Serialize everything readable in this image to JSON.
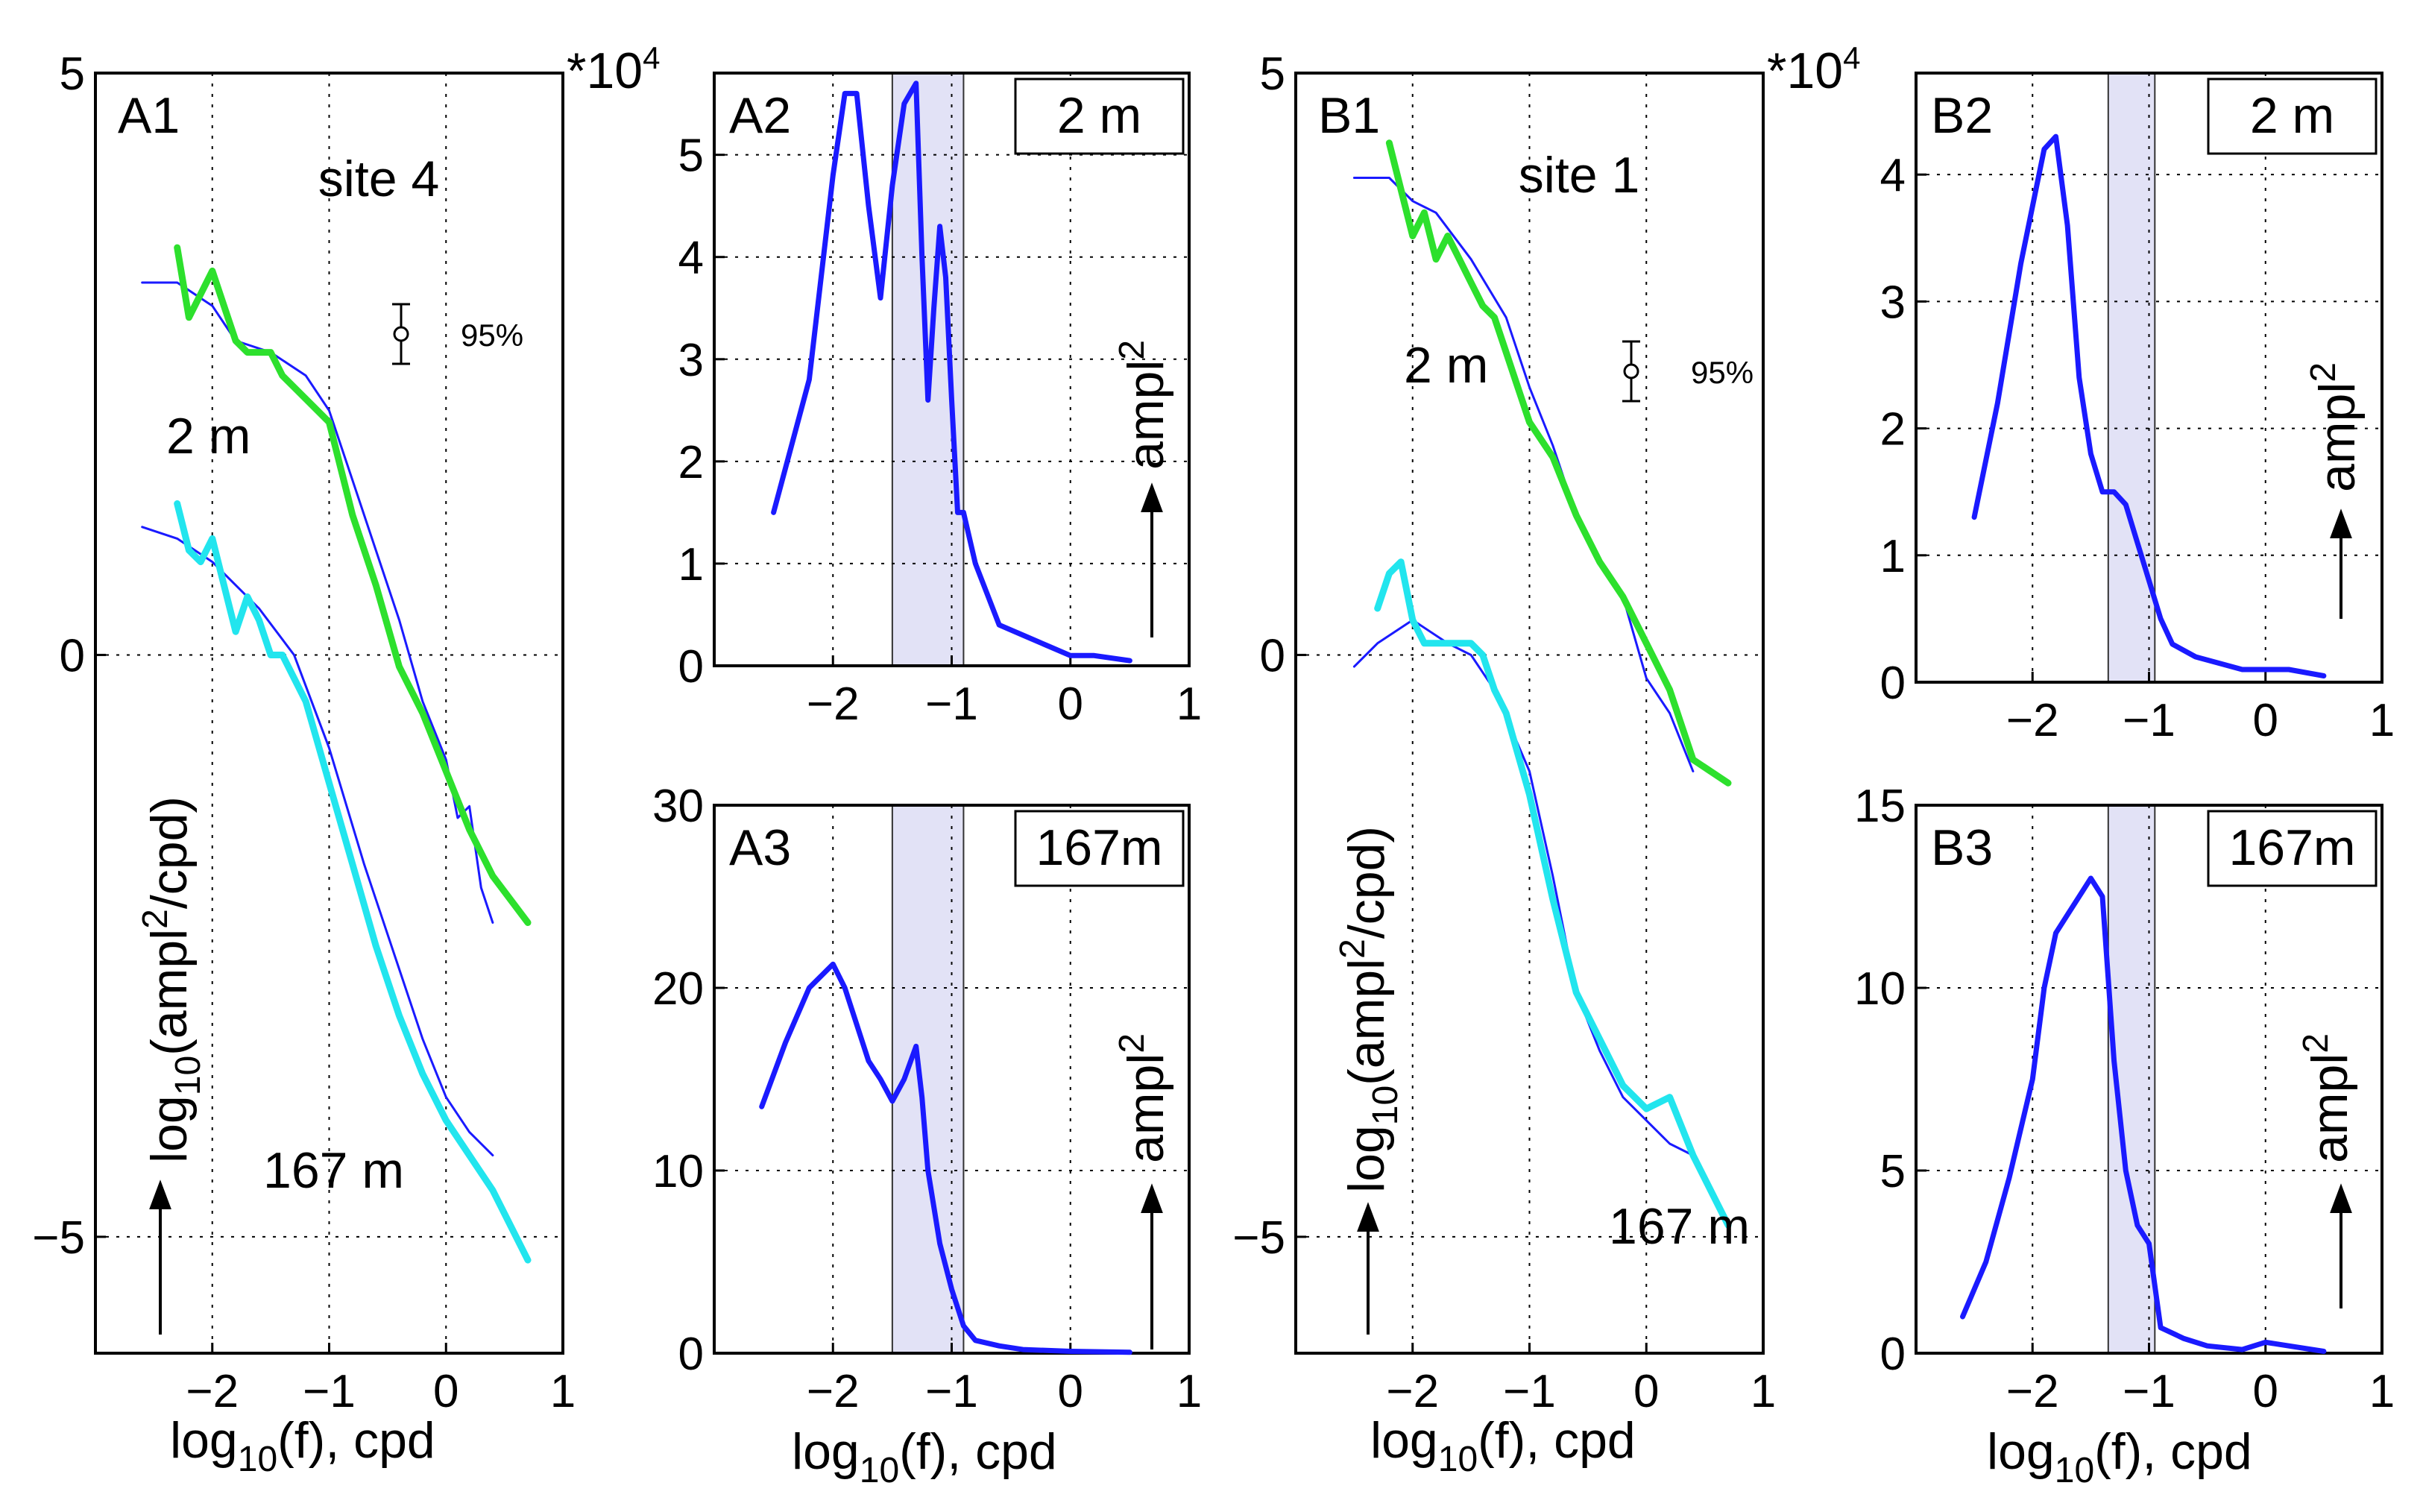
{
  "page": {
    "exponent_label_a": "*10",
    "exponent_label_b": "*10",
    "exponent_power": "4"
  },
  "x_axis_label": {
    "main": "log",
    "sub": "10",
    "rest": "(f), cpd"
  },
  "log_ylabel": {
    "main": "log",
    "sub": "10",
    "open": "(ampl",
    "sup": "2",
    "close": "/cpd)"
  },
  "amp_ylabel": {
    "main": "ampl",
    "sup": "2"
  },
  "confidence": {
    "label": "95%"
  },
  "chart_data": [
    {
      "id": "A1",
      "type": "line",
      "panel_label": "A1",
      "site": "site 4",
      "annotations": [
        "2 m",
        "167 m"
      ],
      "xlim": [
        -3,
        1
      ],
      "ylim": [
        -6,
        5
      ],
      "xticks": [
        -2,
        -1,
        0,
        1
      ],
      "xtick_labels": [
        "−2",
        "−1",
        "0",
        "1"
      ],
      "yticks": [
        -5,
        0,
        5
      ],
      "ytick_labels": [
        "−5",
        "0",
        "5"
      ],
      "series": [
        {
          "color": "#1a1aff",
          "width": 3,
          "x": [
            -2.6,
            -2.3,
            -2.0,
            -1.8,
            -1.5,
            -1.2,
            -1.0,
            -0.8,
            -0.6,
            -0.4,
            -0.2,
            0.0,
            0.1,
            0.2,
            0.3,
            0.4
          ],
          "y": [
            3.2,
            3.2,
            3.0,
            2.7,
            2.6,
            2.4,
            2.1,
            1.5,
            0.9,
            0.3,
            -0.4,
            -0.9,
            -1.4,
            -1.3,
            -2.0,
            -2.3
          ]
        },
        {
          "color": "#2de02d",
          "width": 9,
          "x": [
            -2.3,
            -2.2,
            -2.1,
            -2.0,
            -1.9,
            -1.8,
            -1.7,
            -1.6,
            -1.5,
            -1.4,
            -1.3,
            -1.2,
            -1.0,
            -0.8,
            -0.6,
            -0.4,
            -0.2,
            0.0,
            0.2,
            0.4,
            0.7
          ],
          "y": [
            3.5,
            2.9,
            3.1,
            3.3,
            3.0,
            2.7,
            2.6,
            2.6,
            2.6,
            2.4,
            2.3,
            2.2,
            2.0,
            1.2,
            0.6,
            -0.1,
            -0.5,
            -1.0,
            -1.5,
            -1.9,
            -2.3
          ]
        },
        {
          "color": "#1a1aff",
          "width": 3,
          "x": [
            -2.6,
            -2.3,
            -2.0,
            -1.8,
            -1.6,
            -1.3,
            -1.0,
            -0.7,
            -0.4,
            -0.2,
            0.0,
            0.2,
            0.4
          ],
          "y": [
            1.1,
            1.0,
            0.8,
            0.6,
            0.4,
            0.0,
            -0.8,
            -1.8,
            -2.7,
            -3.3,
            -3.8,
            -4.1,
            -4.3
          ]
        },
        {
          "color": "#22e5ee",
          "width": 9,
          "x": [
            -2.3,
            -2.2,
            -2.1,
            -2.0,
            -1.9,
            -1.8,
            -1.7,
            -1.6,
            -1.5,
            -1.4,
            -1.3,
            -1.2,
            -1.0,
            -0.8,
            -0.6,
            -0.4,
            -0.2,
            0.0,
            0.2,
            0.4,
            0.7
          ],
          "y": [
            1.3,
            0.9,
            0.8,
            1.0,
            0.6,
            0.2,
            0.5,
            0.3,
            0.0,
            0.0,
            -0.2,
            -0.4,
            -1.1,
            -1.8,
            -2.5,
            -3.1,
            -3.6,
            -4.0,
            -4.3,
            -4.6,
            -5.2
          ]
        }
      ]
    },
    {
      "id": "A2",
      "type": "line",
      "panel_label": "A2",
      "depth_box": "2 m",
      "xlim": [
        -3,
        1
      ],
      "ylim": [
        0,
        5.8
      ],
      "xticks": [
        -2,
        -1,
        0,
        1
      ],
      "xtick_labels": [
        "−2",
        "−1",
        "0",
        "1"
      ],
      "yticks": [
        0,
        1,
        2,
        3,
        4,
        5
      ],
      "ytick_labels": [
        "0",
        "1",
        "2",
        "3",
        "4",
        "5"
      ],
      "shaded_band": [
        -1.5,
        -0.9
      ],
      "series": [
        {
          "color": "#1a1aff",
          "width": 7,
          "x": [
            -2.5,
            -2.2,
            -2.0,
            -1.9,
            -1.8,
            -1.7,
            -1.6,
            -1.5,
            -1.4,
            -1.3,
            -1.25,
            -1.2,
            -1.15,
            -1.1,
            -1.05,
            -1.0,
            -0.95,
            -0.9,
            -0.8,
            -0.7,
            -0.6,
            -0.4,
            -0.2,
            0.0,
            0.2,
            0.5
          ],
          "y": [
            1.5,
            2.8,
            4.8,
            5.6,
            5.6,
            4.5,
            3.6,
            4.7,
            5.5,
            5.7,
            4.0,
            2.6,
            3.5,
            4.3,
            3.8,
            2.6,
            1.5,
            1.5,
            1.0,
            0.7,
            0.4,
            0.3,
            0.2,
            0.1,
            0.1,
            0.05
          ]
        }
      ]
    },
    {
      "id": "A3",
      "type": "line",
      "panel_label": "A3",
      "depth_box": "167m",
      "xlim": [
        -3,
        1
      ],
      "ylim": [
        0,
        30
      ],
      "xticks": [
        -2,
        -1,
        0,
        1
      ],
      "xtick_labels": [
        "−2",
        "−1",
        "0",
        "1"
      ],
      "yticks": [
        0,
        10,
        20,
        30
      ],
      "ytick_labels": [
        "0",
        "10",
        "20",
        "30"
      ],
      "shaded_band": [
        -1.5,
        -0.9
      ],
      "series": [
        {
          "color": "#1a1aff",
          "width": 7,
          "x": [
            -2.6,
            -2.4,
            -2.2,
            -2.0,
            -1.9,
            -1.8,
            -1.7,
            -1.6,
            -1.5,
            -1.4,
            -1.3,
            -1.25,
            -1.2,
            -1.1,
            -1.0,
            -0.9,
            -0.8,
            -0.6,
            -0.4,
            0.0,
            0.5
          ],
          "y": [
            13.5,
            17,
            20,
            21.3,
            20,
            18,
            16,
            15,
            13.8,
            15,
            16.8,
            14,
            10,
            6,
            3.5,
            1.5,
            0.7,
            0.4,
            0.2,
            0.1,
            0.05
          ]
        }
      ]
    },
    {
      "id": "B1",
      "type": "line",
      "panel_label": "B1",
      "site": "site 1",
      "annotations": [
        "2 m",
        "167 m"
      ],
      "xlim": [
        -3,
        1
      ],
      "ylim": [
        -6,
        5
      ],
      "xticks": [
        -2,
        -1,
        0,
        1
      ],
      "xtick_labels": [
        "−2",
        "−1",
        "0",
        "1"
      ],
      "yticks": [
        -5,
        0,
        5
      ],
      "ytick_labels": [
        "−5",
        "0",
        "5"
      ],
      "series": [
        {
          "color": "#1a1aff",
          "width": 3,
          "x": [
            -2.5,
            -2.2,
            -2.0,
            -1.8,
            -1.5,
            -1.2,
            -1.0,
            -0.8,
            -0.6,
            -0.4,
            -0.2,
            0.0,
            0.2,
            0.4
          ],
          "y": [
            4.1,
            4.1,
            3.9,
            3.8,
            3.4,
            2.9,
            2.3,
            1.8,
            1.2,
            0.8,
            0.5,
            -0.2,
            -0.5,
            -1.0
          ]
        },
        {
          "color": "#2de02d",
          "width": 9,
          "x": [
            -2.2,
            -2.1,
            -2.0,
            -1.9,
            -1.8,
            -1.7,
            -1.6,
            -1.5,
            -1.4,
            -1.3,
            -1.2,
            -1.0,
            -0.8,
            -0.6,
            -0.4,
            -0.2,
            0.0,
            0.2,
            0.4,
            0.7
          ],
          "y": [
            4.4,
            4.0,
            3.6,
            3.8,
            3.4,
            3.6,
            3.4,
            3.2,
            3.0,
            2.9,
            2.6,
            2.0,
            1.7,
            1.2,
            0.8,
            0.5,
            0.1,
            -0.3,
            -0.9,
            -1.1
          ]
        },
        {
          "color": "#1a1aff",
          "width": 3,
          "x": [
            -2.5,
            -2.3,
            -2.0,
            -1.7,
            -1.5,
            -1.3,
            -1.0,
            -0.8,
            -0.6,
            -0.4,
            -0.2,
            0.0,
            0.2,
            0.4
          ],
          "y": [
            -0.1,
            0.1,
            0.3,
            0.1,
            0.0,
            -0.3,
            -1.0,
            -1.9,
            -2.9,
            -3.4,
            -3.8,
            -4.0,
            -4.2,
            -4.3
          ]
        },
        {
          "color": "#22e5ee",
          "width": 9,
          "x": [
            -2.3,
            -2.2,
            -2.1,
            -2.0,
            -1.9,
            -1.8,
            -1.7,
            -1.6,
            -1.5,
            -1.4,
            -1.3,
            -1.2,
            -1.0,
            -0.8,
            -0.6,
            -0.4,
            -0.2,
            0.0,
            0.2,
            0.4,
            0.7
          ],
          "y": [
            0.4,
            0.7,
            0.8,
            0.3,
            0.1,
            0.1,
            0.1,
            0.1,
            0.1,
            0.0,
            -0.3,
            -0.5,
            -1.2,
            -2.1,
            -2.9,
            -3.3,
            -3.7,
            -3.9,
            -3.8,
            -4.3,
            -4.9
          ]
        }
      ]
    },
    {
      "id": "B2",
      "type": "line",
      "panel_label": "B2",
      "depth_box": "2 m",
      "xlim": [
        -3,
        1
      ],
      "ylim": [
        0,
        4.8
      ],
      "xticks": [
        -2,
        -1,
        0,
        1
      ],
      "xtick_labels": [
        "−2",
        "−1",
        "0",
        "1"
      ],
      "yticks": [
        0,
        1,
        2,
        3,
        4
      ],
      "ytick_labels": [
        "0",
        "1",
        "2",
        "3",
        "4"
      ],
      "shaded_band": [
        -1.35,
        -0.95
      ],
      "series": [
        {
          "color": "#1a1aff",
          "width": 7,
          "x": [
            -2.5,
            -2.3,
            -2.1,
            -1.9,
            -1.8,
            -1.7,
            -1.6,
            -1.5,
            -1.4,
            -1.3,
            -1.2,
            -1.1,
            -1.0,
            -0.9,
            -0.8,
            -0.6,
            -0.4,
            -0.2,
            0.0,
            0.2,
            0.5
          ],
          "y": [
            1.3,
            2.2,
            3.3,
            4.2,
            4.3,
            3.6,
            2.4,
            1.8,
            1.5,
            1.5,
            1.4,
            1.1,
            0.8,
            0.5,
            0.3,
            0.2,
            0.15,
            0.1,
            0.1,
            0.1,
            0.05
          ]
        }
      ]
    },
    {
      "id": "B3",
      "type": "line",
      "panel_label": "B3",
      "depth_box": "167m",
      "xlim": [
        -3,
        1
      ],
      "ylim": [
        0,
        15
      ],
      "xticks": [
        -2,
        -1,
        0,
        1
      ],
      "xtick_labels": [
        "−2",
        "−1",
        "0",
        "1"
      ],
      "yticks": [
        0,
        5,
        10,
        15
      ],
      "ytick_labels": [
        "0",
        "5",
        "10",
        "15"
      ],
      "shaded_band": [
        -1.35,
        -0.95
      ],
      "series": [
        {
          "color": "#1a1aff",
          "width": 7,
          "x": [
            -2.6,
            -2.4,
            -2.2,
            -2.0,
            -1.9,
            -1.8,
            -1.7,
            -1.6,
            -1.5,
            -1.4,
            -1.3,
            -1.2,
            -1.1,
            -1.0,
            -0.9,
            -0.7,
            -0.5,
            -0.2,
            0.0,
            0.2,
            0.5
          ],
          "y": [
            1.0,
            2.5,
            4.8,
            7.5,
            10,
            11.5,
            12,
            12.5,
            13,
            12.5,
            8,
            5,
            3.5,
            3,
            0.7,
            0.4,
            0.2,
            0.1,
            0.3,
            0.2,
            0.05
          ]
        }
      ]
    }
  ]
}
